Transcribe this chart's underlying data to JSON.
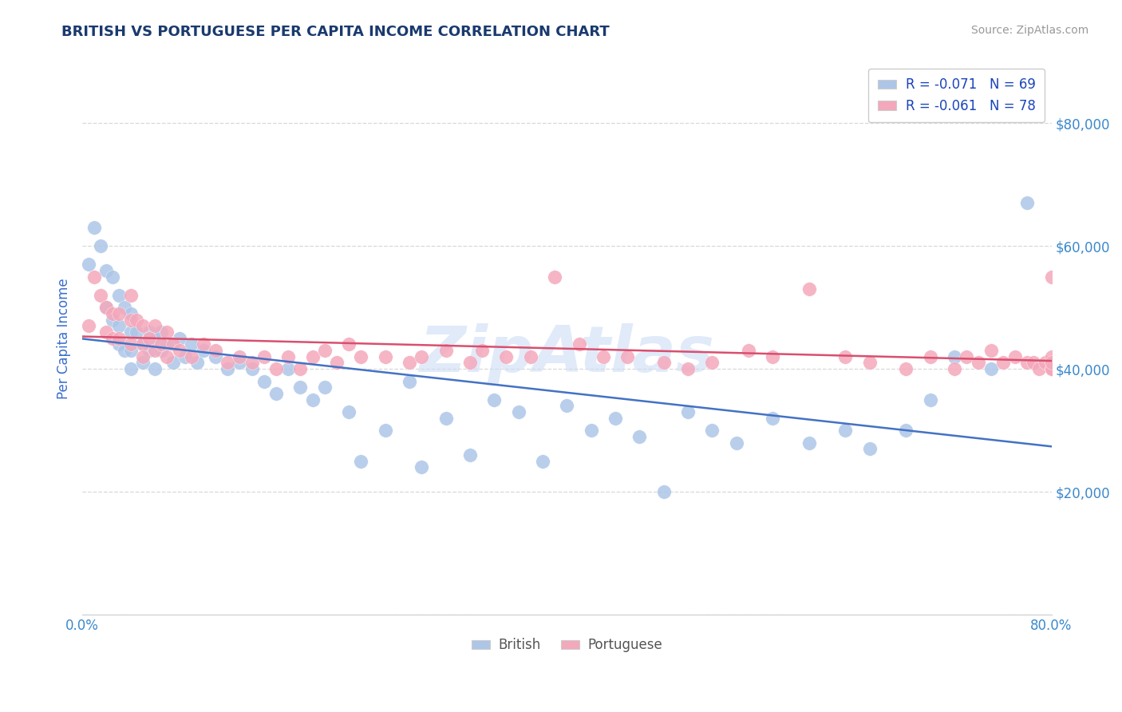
{
  "title": "BRITISH VS PORTUGUESE PER CAPITA INCOME CORRELATION CHART",
  "source_text": "Source: ZipAtlas.com",
  "ylabel": "Per Capita Income",
  "xlim": [
    0.0,
    0.8
  ],
  "ylim": [
    0,
    90000
  ],
  "xticks": [
    0.0,
    0.1,
    0.2,
    0.3,
    0.4,
    0.5,
    0.6,
    0.7,
    0.8
  ],
  "xticklabels": [
    "0.0%",
    "",
    "",
    "",
    "",
    "",
    "",
    "",
    "80.0%"
  ],
  "yticks": [
    0,
    20000,
    40000,
    60000,
    80000
  ],
  "yticklabels": [
    "",
    "$20,000",
    "$40,000",
    "$60,000",
    "$80,000"
  ],
  "british_R": "-0.071",
  "british_N": "69",
  "portuguese_R": "-0.061",
  "portuguese_N": "78",
  "british_color": "#adc6e8",
  "portuguese_color": "#f4a8bb",
  "british_line_color": "#4472c4",
  "portuguese_line_color": "#d94f6e",
  "legend_text_color": "#1a44bb",
  "title_color": "#1a3a6e",
  "axis_label_color": "#3a6ecc",
  "tick_color": "#3a88cc",
  "watermark_color": "#ccddf5",
  "watermark_text": "ZipAtlas",
  "background_color": "#ffffff",
  "grid_color": "#d8d8d8",
  "british_x": [
    0.005,
    0.01,
    0.015,
    0.02,
    0.02,
    0.025,
    0.025,
    0.03,
    0.03,
    0.03,
    0.035,
    0.035,
    0.04,
    0.04,
    0.04,
    0.04,
    0.045,
    0.05,
    0.05,
    0.055,
    0.055,
    0.06,
    0.06,
    0.065,
    0.065,
    0.07,
    0.075,
    0.08,
    0.085,
    0.09,
    0.095,
    0.1,
    0.11,
    0.12,
    0.13,
    0.14,
    0.15,
    0.16,
    0.17,
    0.18,
    0.19,
    0.2,
    0.22,
    0.23,
    0.25,
    0.27,
    0.28,
    0.3,
    0.32,
    0.34,
    0.36,
    0.38,
    0.4,
    0.42,
    0.44,
    0.46,
    0.48,
    0.5,
    0.52,
    0.54,
    0.57,
    0.6,
    0.63,
    0.65,
    0.68,
    0.7,
    0.72,
    0.75,
    0.78
  ],
  "british_y": [
    57000,
    63000,
    60000,
    56000,
    50000,
    55000,
    48000,
    52000,
    47000,
    44000,
    50000,
    43000,
    49000,
    46000,
    43000,
    40000,
    46000,
    44000,
    41000,
    46000,
    43000,
    45000,
    40000,
    46000,
    43000,
    44000,
    41000,
    45000,
    42000,
    44000,
    41000,
    43000,
    42000,
    40000,
    41000,
    40000,
    38000,
    36000,
    40000,
    37000,
    35000,
    37000,
    33000,
    25000,
    30000,
    38000,
    24000,
    32000,
    26000,
    35000,
    33000,
    25000,
    34000,
    30000,
    32000,
    29000,
    20000,
    33000,
    30000,
    28000,
    32000,
    28000,
    30000,
    27000,
    30000,
    35000,
    42000,
    40000,
    67000
  ],
  "portuguese_x": [
    0.005,
    0.01,
    0.015,
    0.02,
    0.02,
    0.025,
    0.025,
    0.03,
    0.03,
    0.04,
    0.04,
    0.04,
    0.045,
    0.05,
    0.05,
    0.05,
    0.055,
    0.06,
    0.06,
    0.065,
    0.07,
    0.07,
    0.075,
    0.08,
    0.09,
    0.1,
    0.11,
    0.12,
    0.13,
    0.14,
    0.15,
    0.16,
    0.17,
    0.18,
    0.19,
    0.2,
    0.21,
    0.22,
    0.23,
    0.25,
    0.27,
    0.28,
    0.3,
    0.32,
    0.33,
    0.35,
    0.37,
    0.39,
    0.41,
    0.43,
    0.45,
    0.48,
    0.5,
    0.52,
    0.55,
    0.57,
    0.6,
    0.63,
    0.65,
    0.68,
    0.7,
    0.72,
    0.73,
    0.74,
    0.75,
    0.76,
    0.77,
    0.78,
    0.785,
    0.79,
    0.795,
    0.8,
    0.8,
    0.8,
    0.8,
    0.8,
    0.8,
    0.8
  ],
  "portuguese_y": [
    47000,
    55000,
    52000,
    50000,
    46000,
    49000,
    45000,
    49000,
    45000,
    52000,
    48000,
    44000,
    48000,
    47000,
    44000,
    42000,
    45000,
    47000,
    43000,
    44000,
    46000,
    42000,
    44000,
    43000,
    42000,
    44000,
    43000,
    41000,
    42000,
    41000,
    42000,
    40000,
    42000,
    40000,
    42000,
    43000,
    41000,
    44000,
    42000,
    42000,
    41000,
    42000,
    43000,
    41000,
    43000,
    42000,
    42000,
    55000,
    44000,
    42000,
    42000,
    41000,
    40000,
    41000,
    43000,
    42000,
    53000,
    42000,
    41000,
    40000,
    42000,
    40000,
    42000,
    41000,
    43000,
    41000,
    42000,
    41000,
    41000,
    40000,
    41000,
    40000,
    40000,
    40000,
    55000,
    42000,
    40000,
    41000
  ]
}
